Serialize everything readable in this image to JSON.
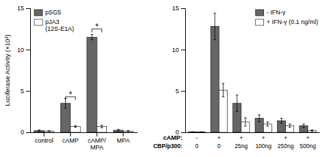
{
  "chart_data": [
    {
      "type": "bar",
      "categories": [
        "control",
        "cAMP",
        "cAMP/\nMPA",
        "MPA"
      ],
      "ylabel": "Luciferase Activity (×10³)",
      "series": [
        {
          "name": "pSG5",
          "color": "#666666",
          "values": [
            0.2,
            3.5,
            11.5,
            0.25
          ],
          "errors": [
            0.1,
            0.6,
            0.3,
            0.1
          ]
        },
        {
          "name": "pJA3\n(12S-E1A)",
          "color": "#ffffff",
          "values": [
            0.15,
            0.7,
            0.7,
            0.15
          ],
          "errors": [
            0.05,
            0.1,
            0.15,
            0.05
          ]
        }
      ],
      "ylim": [
        0,
        15
      ],
      "yticks": [
        0,
        5,
        10,
        15
      ],
      "legend": "upper left",
      "annotations": [
        {
          "text": "*",
          "x": "cAMP",
          "y": 4.3
        },
        {
          "text": "*",
          "x": "cAMP/\nMPA",
          "y": 12.5
        }
      ]
    },
    {
      "type": "bar",
      "categories": [
        "-",
        "+",
        "+",
        "+",
        "+",
        "+"
      ],
      "category_label": "cAMP:",
      "categories2": [
        "0",
        "0",
        "25ng",
        "100ng",
        "250ng",
        "500ng"
      ],
      "category2_label": "CBP/p300:",
      "series": [
        {
          "name": "- IFN-γ",
          "color": "#666666",
          "values": [
            0.05,
            12.8,
            3.5,
            1.7,
            1.4,
            0.8
          ],
          "errors": [
            0.02,
            1.6,
            1.0,
            0.4,
            0.3,
            0.2
          ]
        },
        {
          "name": "+ IFN-γ (0.1 ng/ml)",
          "color": "#ffffff",
          "values": [
            0.05,
            5.1,
            1.25,
            1.0,
            0.8,
            0.2
          ],
          "errors": [
            0.02,
            0.8,
            0.5,
            0.25,
            0.2,
            0.1
          ]
        }
      ],
      "ylim": [
        0,
        15
      ],
      "yticks": [
        0,
        5,
        10,
        15
      ],
      "legend": "upper right"
    }
  ]
}
